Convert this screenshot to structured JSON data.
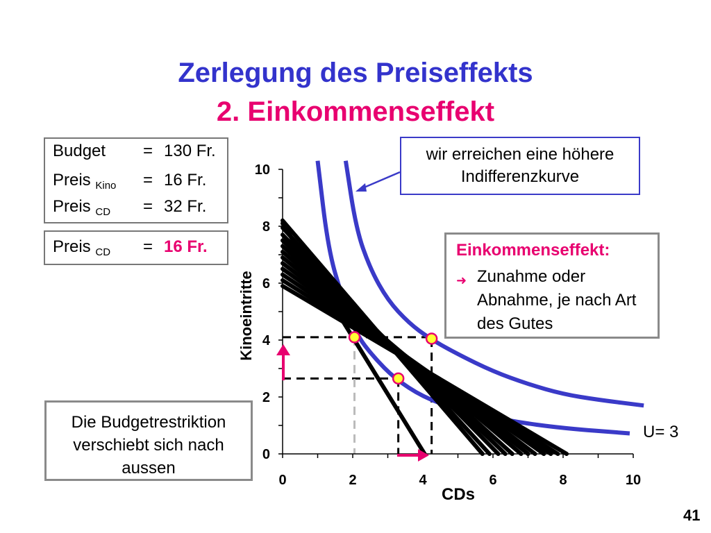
{
  "title": "Zerlegung des Preiseffekts",
  "subtitle": "2. Einkommenseffekt",
  "colors": {
    "title": "#3333cc",
    "subtitle": "#e8006f",
    "curve": "#3a3ac8"
  },
  "budget_box": {
    "rows": [
      {
        "label": "Budget",
        "sub": "",
        "eq": "=",
        "value": "130 Fr."
      },
      {
        "label": "Preis ",
        "sub": "Kino",
        "eq": "=",
        "value": "16 Fr."
      },
      {
        "label": "Preis ",
        "sub": "CD",
        "eq": "=",
        "value": "32 Fr."
      }
    ]
  },
  "new_price": {
    "label": "Preis ",
    "sub": "CD",
    "eq": "=",
    "value": "16 Fr."
  },
  "note": "wir erreichen eine höhere Indifferenzkurve",
  "effect": {
    "heading": "Einkommenseffekt:",
    "bullet_icon": "arrow-right-icon",
    "text": "Zunahme oder Abnahme, je nach Art des Gutes"
  },
  "shift_note": "Die Budgetrestriktion verschiebt sich nach aussen",
  "curve_label": "U= 3",
  "page_number": "41",
  "chart_data": {
    "type": "line",
    "xlabel": "CDs",
    "ylabel": "Kinoeintritte",
    "xlim": [
      0,
      10
    ],
    "ylim": [
      0,
      10
    ],
    "x_ticks": [
      "0",
      "2",
      "4",
      "6",
      "8",
      "10"
    ],
    "y_ticks": [
      "0",
      "2",
      "4",
      "6",
      "8",
      "10"
    ],
    "budget_lines": [
      {
        "x0": 0,
        "y0": 8.1,
        "x1": 4.05,
        "y1": 0
      },
      {
        "x0": 0,
        "y0": 8.2,
        "x1": 5.7,
        "y1": 0
      },
      {
        "x0": 0,
        "y0": 7.95,
        "x1": 5.9,
        "y1": 0
      },
      {
        "x0": 0,
        "y0": 7.7,
        "x1": 6.15,
        "y1": 0
      },
      {
        "x0": 0,
        "y0": 7.5,
        "x1": 6.35,
        "y1": 0
      },
      {
        "x0": 0,
        "y0": 7.3,
        "x1": 6.55,
        "y1": 0
      },
      {
        "x0": 0,
        "y0": 7.1,
        "x1": 6.8,
        "y1": 0
      },
      {
        "x0": 0,
        "y0": 6.9,
        "x1": 7.0,
        "y1": 0
      },
      {
        "x0": 0,
        "y0": 6.7,
        "x1": 7.2,
        "y1": 0
      },
      {
        "x0": 0,
        "y0": 6.5,
        "x1": 7.45,
        "y1": 0
      },
      {
        "x0": 0,
        "y0": 6.3,
        "x1": 7.65,
        "y1": 0
      },
      {
        "x0": 0,
        "y0": 6.1,
        "x1": 7.85,
        "y1": 0
      },
      {
        "x0": 0,
        "y0": 5.9,
        "x1": 8.1,
        "y1": 0
      }
    ],
    "indifference_curves": [
      {
        "name": "U= 3",
        "points": [
          [
            1.0,
            10.3
          ],
          [
            1.3,
            7.2
          ],
          [
            1.7,
            5.5
          ],
          [
            2.1,
            4.2
          ],
          [
            2.6,
            3.4
          ],
          [
            3.2,
            2.65
          ],
          [
            4.0,
            2.0
          ],
          [
            5.0,
            1.55
          ],
          [
            6.5,
            1.15
          ],
          [
            8.0,
            0.9
          ],
          [
            9.9,
            0.72
          ]
        ]
      },
      {
        "name": "",
        "points": [
          [
            1.8,
            10.3
          ],
          [
            2.1,
            7.9
          ],
          [
            2.5,
            6.5
          ],
          [
            3.0,
            5.4
          ],
          [
            3.6,
            4.6
          ],
          [
            4.2,
            4.05
          ],
          [
            5.0,
            3.5
          ],
          [
            6.0,
            2.9
          ],
          [
            7.0,
            2.45
          ],
          [
            8.0,
            2.1
          ],
          [
            9.0,
            1.9
          ],
          [
            10.3,
            1.7
          ]
        ]
      }
    ],
    "points": [
      [
        2.05,
        4.1
      ],
      [
        3.3,
        2.65
      ],
      [
        4.25,
        4.05
      ]
    ],
    "dashed_guides": [
      {
        "from": [
          0,
          4.1
        ],
        "to": [
          4.25,
          4.1
        ]
      },
      {
        "from": [
          0,
          2.65
        ],
        "to": [
          3.3,
          2.65
        ]
      },
      {
        "from": [
          3.3,
          2.65
        ],
        "to": [
          3.3,
          0
        ]
      },
      {
        "from": [
          4.25,
          4.05
        ],
        "to": [
          4.25,
          0
        ]
      },
      {
        "from": [
          2.05,
          4.1
        ],
        "to": [
          2.05,
          0
        ],
        "color": "#bbbbbb"
      }
    ]
  }
}
